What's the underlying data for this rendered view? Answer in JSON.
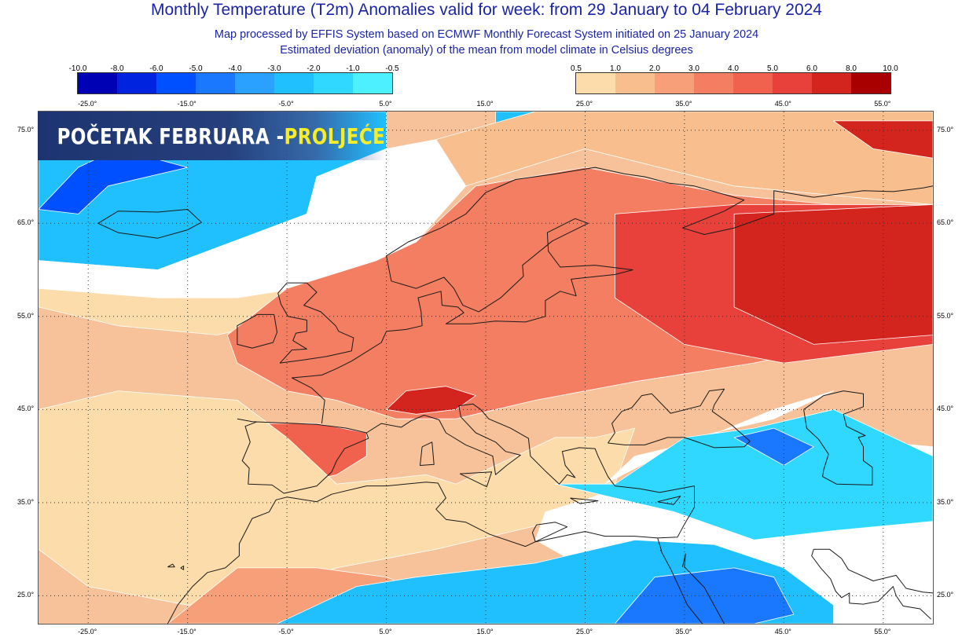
{
  "header": {
    "title": "Monthly Temperature (T2m) Anomalies valid for week: from 29 January to 04 February 2024",
    "subtitle_1": "Map processed by EFFIS System based on ECMWF Monthly Forecast System initiated on 25 January 2024",
    "subtitle_2": "Estimated deviation (anomaly) of the mean from model climate in Celsius degrees"
  },
  "banner": {
    "text_white": "POČETAK FEBRUARA - ",
    "text_yellow": "PROLJEĆE"
  },
  "legend": {
    "cool_ticks": [
      "-10.0",
      "-8.0",
      "-6.0",
      "-5.0",
      "-4.0",
      "-3.0",
      "-2.0",
      "-1.0",
      "-0.5"
    ],
    "cool_colors": [
      "#0000b4",
      "#0023e0",
      "#0050ff",
      "#1a78ff",
      "#2aa0ff",
      "#20c0ff",
      "#30d8ff",
      "#4cf0ff"
    ],
    "warm_ticks": [
      "0.5",
      "1.0",
      "2.0",
      "3.0",
      "4.0",
      "5.0",
      "6.0",
      "8.0",
      "10.0"
    ],
    "warm_colors": [
      "#fbdcaa",
      "#f9be8e",
      "#f79f78",
      "#f47e62",
      "#f0614e",
      "#e8413c",
      "#d4241e",
      "#a80000"
    ]
  },
  "axes": {
    "lon_labels": [
      "-25.0°",
      "-15.0°",
      "-5.0°",
      "5.0°",
      "15.0°",
      "25.0°",
      "35.0°",
      "45.0°",
      "55.0°"
    ],
    "lat_labels": [
      "75.0°",
      "65.0°",
      "55.0°",
      "45.0°",
      "35.0°",
      "25.0°"
    ]
  },
  "map_data": {
    "projection": "equirectangular",
    "lon_range": [
      -30,
      60
    ],
    "lat_range": [
      22,
      77
    ],
    "grid_lon": [
      -25,
      -15,
      -5,
      5,
      15,
      25,
      35,
      45,
      55
    ],
    "grid_lat": [
      75,
      65,
      55,
      45,
      35,
      25
    ],
    "background_anomaly_class": "2.0 to 3.0",
    "regions": [
      {
        "name": "arctic-cool",
        "fill": "#20c0ff",
        "poly": [
          [
            -30,
            72
          ],
          [
            -21,
            77
          ],
          [
            5,
            77
          ],
          [
            5,
            73
          ],
          [
            -2,
            70
          ],
          [
            -3,
            66
          ],
          [
            -8,
            64
          ],
          [
            -18,
            60
          ],
          [
            -30,
            61
          ]
        ]
      },
      {
        "name": "greenland-sea-cold",
        "fill": "#0050ff",
        "poly": [
          [
            -30,
            66.5
          ],
          [
            -26,
            71
          ],
          [
            -22,
            73
          ],
          [
            -15,
            71
          ],
          [
            -23,
            69
          ],
          [
            -26,
            66
          ]
        ]
      },
      {
        "name": "barents-cool",
        "fill": "#20c0ff",
        "poly": [
          [
            16,
            77
          ],
          [
            26,
            77
          ],
          [
            24,
            76
          ],
          [
            16,
            75
          ]
        ]
      },
      {
        "name": "atlantic-white",
        "fill": "#ffffff",
        "poly": [
          [
            -30,
            61
          ],
          [
            -18,
            60
          ],
          [
            -8,
            64
          ],
          [
            -3,
            66
          ],
          [
            -2,
            70
          ],
          [
            5,
            73
          ],
          [
            10,
            74
          ],
          [
            13,
            69
          ],
          [
            8,
            63
          ],
          [
            3,
            60
          ],
          [
            -4,
            58
          ],
          [
            -10,
            57
          ],
          [
            -18,
            57
          ],
          [
            -30,
            58
          ]
        ]
      },
      {
        "name": "north-atlantic-light",
        "fill": "#fbdcaa",
        "poly": [
          [
            -30,
            58
          ],
          [
            -18,
            57
          ],
          [
            -10,
            57
          ],
          [
            -4,
            58
          ],
          [
            -4,
            55
          ],
          [
            -12,
            53
          ],
          [
            -22,
            54
          ],
          [
            -30,
            56
          ]
        ]
      },
      {
        "name": "arctic-coast-band",
        "fill": "#f9be8e",
        "poly": [
          [
            10,
            74
          ],
          [
            20,
            77
          ],
          [
            60,
            77
          ],
          [
            60,
            67
          ],
          [
            40,
            69
          ],
          [
            25,
            73
          ],
          [
            13,
            69
          ]
        ]
      },
      {
        "name": "europe-warm",
        "fill": "#f47e62",
        "poly": [
          [
            -11,
            53
          ],
          [
            -5,
            58
          ],
          [
            4,
            61
          ],
          [
            8,
            63
          ],
          [
            14,
            69
          ],
          [
            25,
            71
          ],
          [
            40,
            68
          ],
          [
            60,
            66
          ],
          [
            60,
            54
          ],
          [
            42,
            50
          ],
          [
            30,
            48
          ],
          [
            20,
            46
          ],
          [
            12,
            44
          ],
          [
            6,
            44
          ],
          [
            0,
            46
          ],
          [
            -5,
            47
          ],
          [
            -10,
            50
          ]
        ]
      },
      {
        "name": "russia-hot",
        "fill": "#e8413c",
        "poly": [
          [
            28,
            66
          ],
          [
            40,
            67
          ],
          [
            60,
            67
          ],
          [
            60,
            52
          ],
          [
            45,
            50
          ],
          [
            35,
            52
          ],
          [
            28,
            57
          ]
        ]
      },
      {
        "name": "russia-very-hot",
        "fill": "#d4241e",
        "poly": [
          [
            40,
            66
          ],
          [
            60,
            67
          ],
          [
            60,
            53
          ],
          [
            48,
            52
          ],
          [
            40,
            56
          ]
        ]
      },
      {
        "name": "kola-hot",
        "fill": "#d4241e",
        "poly": [
          [
            50,
            76
          ],
          [
            60,
            76
          ],
          [
            60,
            72
          ],
          [
            54,
            73
          ]
        ]
      },
      {
        "name": "alps-hot",
        "fill": "#d4241e",
        "poly": [
          [
            5,
            45
          ],
          [
            7,
            47
          ],
          [
            11,
            47.5
          ],
          [
            14,
            46.5
          ],
          [
            12,
            45
          ],
          [
            8,
            44.5
          ]
        ]
      },
      {
        "name": "iberia-warm",
        "fill": "#f0614e",
        "poly": [
          [
            -9,
            43.5
          ],
          [
            -2,
            43.5
          ],
          [
            3,
            42.5
          ],
          [
            3,
            40
          ],
          [
            0,
            38
          ],
          [
            -6,
            36.5
          ],
          [
            -9,
            37
          ],
          [
            -9.5,
            40
          ]
        ]
      },
      {
        "name": "morocco-warm",
        "fill": "#f0614e",
        "poly": [
          [
            -10,
            31
          ],
          [
            -5,
            35.5
          ],
          [
            1,
            35.5
          ],
          [
            6,
            35
          ],
          [
            10,
            34
          ],
          [
            6,
            31
          ],
          [
            -2,
            30
          ]
        ]
      },
      {
        "name": "mediterranean-light",
        "fill": "#fbdcaa",
        "poly": [
          [
            -30,
            45
          ],
          [
            -22,
            47
          ],
          [
            -10,
            46
          ],
          [
            -5,
            42
          ],
          [
            -1,
            38
          ],
          [
            0,
            37
          ],
          [
            9,
            38
          ],
          [
            12,
            37
          ],
          [
            18,
            40
          ],
          [
            22,
            42
          ],
          [
            26,
            42
          ],
          [
            30,
            43
          ],
          [
            28,
            37
          ],
          [
            22,
            33
          ],
          [
            10,
            30
          ],
          [
            0,
            28
          ],
          [
            -8,
            25
          ],
          [
            -15,
            24
          ],
          [
            -25,
            26
          ],
          [
            -30,
            30
          ]
        ]
      },
      {
        "name": "africa-warm",
        "fill": "#f79f78",
        "poly": [
          [
            -17,
            22
          ],
          [
            -10,
            28
          ],
          [
            -2,
            28
          ],
          [
            5,
            27
          ],
          [
            10,
            25
          ],
          [
            5,
            22
          ]
        ]
      },
      {
        "name": "levant-white",
        "fill": "#ffffff",
        "poly": [
          [
            21,
            34
          ],
          [
            30,
            37
          ],
          [
            37,
            37
          ],
          [
            42,
            38
          ],
          [
            48,
            39
          ],
          [
            50,
            42
          ],
          [
            60,
            41
          ],
          [
            60,
            22
          ],
          [
            35,
            22
          ],
          [
            25,
            28
          ],
          [
            20,
            31
          ]
        ]
      },
      {
        "name": "anatolia-white",
        "fill": "#ffffff",
        "poly": [
          [
            27,
            37
          ],
          [
            36,
            42
          ],
          [
            44,
            44
          ],
          [
            50,
            47
          ],
          [
            44,
            45
          ],
          [
            36,
            41.5
          ],
          [
            30,
            40
          ]
        ]
      },
      {
        "name": "turkey-cool",
        "fill": "#30d8ff",
        "poly": [
          [
            22,
            37
          ],
          [
            28,
            37
          ],
          [
            35,
            42
          ],
          [
            42,
            43
          ],
          [
            50,
            45
          ],
          [
            60,
            40
          ],
          [
            60,
            33
          ],
          [
            50,
            32
          ],
          [
            42,
            31
          ],
          [
            34,
            34
          ],
          [
            28,
            35.5
          ]
        ]
      },
      {
        "name": "sahara-cool",
        "fill": "#20c0ff",
        "poly": [
          [
            -6,
            22
          ],
          [
            2,
            26
          ],
          [
            8,
            27
          ],
          [
            20,
            28.5
          ],
          [
            30,
            31
          ],
          [
            38,
            30.5
          ],
          [
            45,
            28
          ],
          [
            50,
            24
          ],
          [
            50,
            22
          ]
        ]
      },
      {
        "name": "arabia-cold",
        "fill": "#1a78ff",
        "poly": [
          [
            28,
            22
          ],
          [
            32,
            27
          ],
          [
            40,
            28
          ],
          [
            44,
            27
          ],
          [
            46,
            23
          ],
          [
            42,
            22
          ]
        ]
      },
      {
        "name": "caucasus-cold",
        "fill": "#1a78ff",
        "poly": [
          [
            40,
            42
          ],
          [
            44,
            43
          ],
          [
            48,
            41
          ],
          [
            45,
            39
          ]
        ]
      }
    ],
    "contour_color": "#ffffff",
    "coastline_color": "#1a1a1a"
  }
}
